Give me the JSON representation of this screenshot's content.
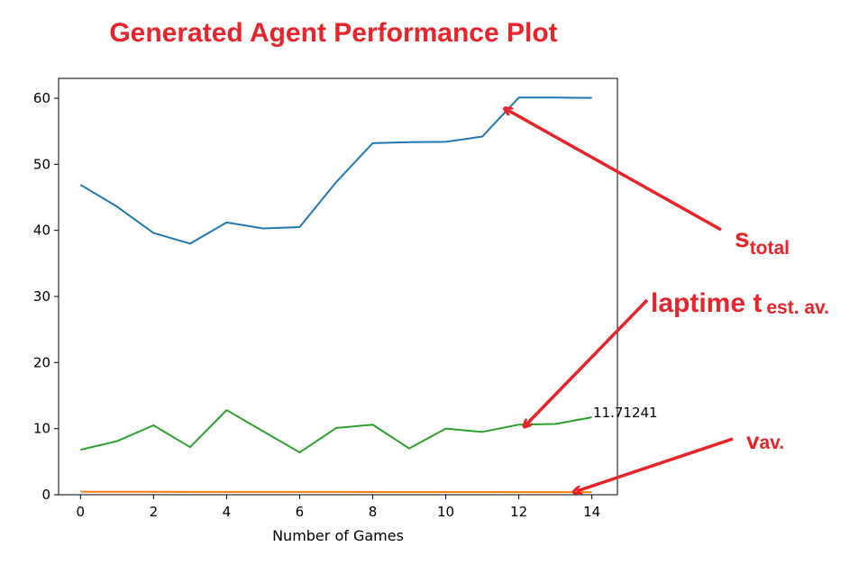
{
  "chart_data": {
    "type": "line",
    "title": "Generated Agent Performance Plot",
    "xlabel": "Number of Games",
    "ylabel": "",
    "xlim": [
      -0.6,
      14.7
    ],
    "ylim": [
      0,
      63
    ],
    "x_ticks": [
      0,
      2,
      4,
      6,
      8,
      10,
      12,
      14
    ],
    "y_ticks": [
      0,
      10,
      20,
      30,
      40,
      50,
      60
    ],
    "x": [
      0,
      1,
      2,
      3,
      4,
      5,
      6,
      7,
      8,
      9,
      10,
      11,
      12,
      13,
      14
    ],
    "series": [
      {
        "color": "#1f77b4",
        "values": [
          46.9,
          43.6,
          39.6,
          38.0,
          41.2,
          40.3,
          40.5,
          47.3,
          53.2,
          53.35,
          53.4,
          54.2,
          60.1,
          60.1,
          60.05
        ]
      },
      {
        "color": "#ff7f0e",
        "values": [
          0.45,
          0.45,
          0.44,
          0.43,
          0.43,
          0.42,
          0.42,
          0.42,
          0.41,
          0.41,
          0.41,
          0.41,
          0.4,
          0.4,
          0.4
        ]
      },
      {
        "color": "#2ca02c",
        "values": [
          6.8,
          8.1,
          10.5,
          7.2,
          12.8,
          9.6,
          6.4,
          10.1,
          10.6,
          7.0,
          10.0,
          9.5,
          10.6,
          10.7,
          11.71241
        ]
      }
    ],
    "end_label": "11.71241",
    "grid": false
  },
  "annotations": {
    "color": "#e8232a",
    "s_total": {
      "main": "s",
      "sub": "total"
    },
    "laptime": {
      "main": "laptime t",
      "sub": "est. av."
    },
    "v_av": {
      "main": "v",
      "sub": "av."
    }
  }
}
